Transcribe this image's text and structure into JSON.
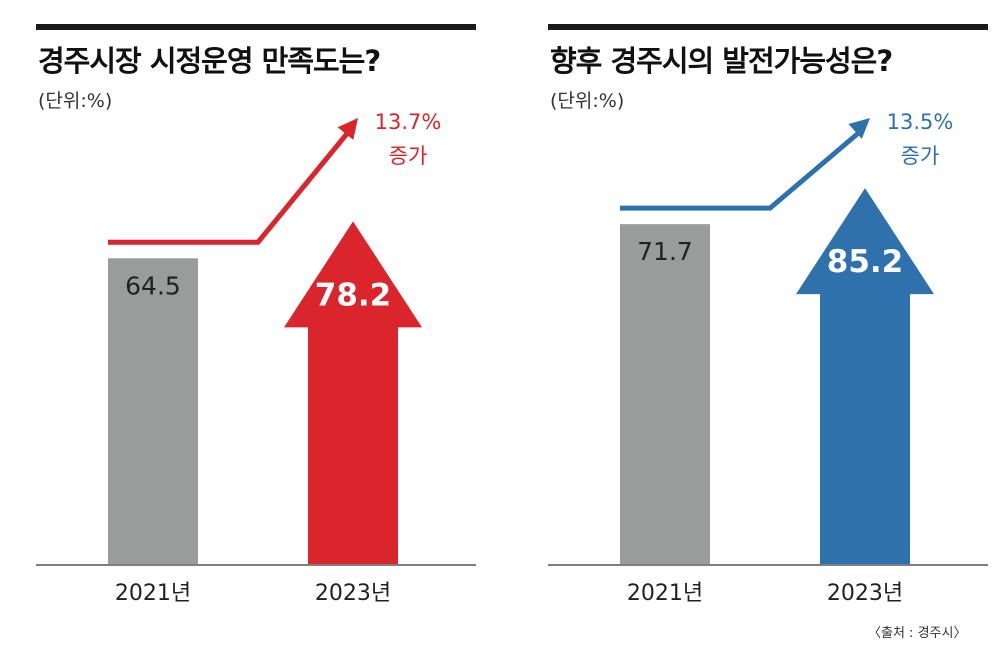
{
  "source": "〈출처 : 경주시〉",
  "colors": {
    "gray": "#9a9b9b",
    "red": "#d9252b",
    "blue": "#2e71ad",
    "text": "#222222"
  },
  "chart_data": [
    {
      "type": "bar",
      "title": "경주시장 시정운영 만족도는?",
      "unit": "(단위:%)",
      "categories": [
        "2021년",
        "2023년"
      ],
      "values": [
        64.5,
        78.2
      ],
      "value_labels": [
        "64.5",
        "78.2"
      ],
      "change_label": "13.7%",
      "change_word": "증가",
      "accent": "#d9252b",
      "ylim": [
        0,
        100
      ]
    },
    {
      "type": "bar",
      "title": "향후 경주시의 발전가능성은?",
      "unit": "(단위:%)",
      "categories": [
        "2021년",
        "2023년"
      ],
      "values": [
        71.7,
        85.2
      ],
      "value_labels": [
        "71.7",
        "85.2"
      ],
      "change_label": "13.5%",
      "change_word": "증가",
      "accent": "#2e71ad",
      "ylim": [
        0,
        100
      ]
    }
  ]
}
